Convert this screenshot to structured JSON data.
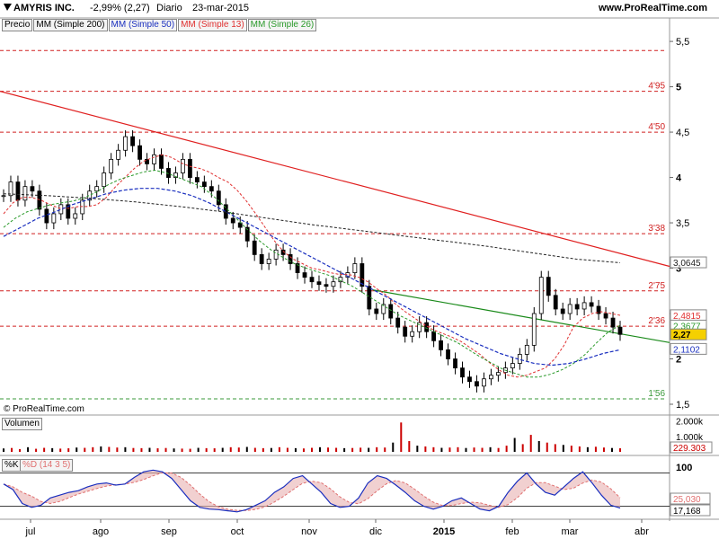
{
  "header": {
    "ticker": "AMYRIS INC.",
    "change": "-2,99% (2,27)",
    "period": "Diario",
    "date": "23-mar-2015",
    "site": "www.ProRealTime.com",
    "copyright": "© ProRealTime.com"
  },
  "legend": {
    "price": "Precio",
    "mm200": "MM (Simple 200)",
    "mm50": "MM (Simple 50)",
    "mm13": "MM (Simple 13)",
    "mm26": "MM (Simple 26)"
  },
  "colors": {
    "mm200": "#222222",
    "mm50": "#1a2fbf",
    "mm13": "#e03030",
    "mm26": "#2a9a2a",
    "resistance": "#e02020",
    "trendline": "#1a8a1a",
    "candle": "#000000",
    "volume_up": "#cc0000",
    "volume_down": "#000000",
    "stoch_k": "#1a2fbf",
    "stoch_d": "#e07070",
    "current_tag": "#f5d000"
  },
  "volume_panel": {
    "label": "Volumen",
    "tick_top": "2.000k",
    "tick_mid": "1.000k",
    "last_value": "229.303"
  },
  "stoch_panel": {
    "label_k": "%K",
    "label_d": "%D (14 3 5)",
    "tick_top": "100",
    "value_d": "25,030",
    "value_k": "17,168"
  },
  "chart_data": {
    "type": "candlestick",
    "price_ylim": [
      1.5,
      5.6
    ],
    "price_ticks": [
      "1,5",
      "2",
      "2,5",
      "3",
      "3,5",
      "4",
      "4,5",
      "5",
      "5,5"
    ],
    "xaxis_labels": [
      "jul",
      "ago",
      "sep",
      "oct",
      "nov",
      "dic",
      "2015",
      "feb",
      "mar",
      "abr"
    ],
    "levels": [
      {
        "value": 5.4,
        "label": ""
      },
      {
        "value": 4.95,
        "label": "4'95"
      },
      {
        "value": 4.5,
        "label": "4'50"
      },
      {
        "value": 3.38,
        "label": "3'38"
      },
      {
        "value": 2.75,
        "label": "2'75"
      },
      {
        "value": 2.36,
        "label": "2'36"
      },
      {
        "value": 1.56,
        "label": "1'56"
      }
    ],
    "price_tags": [
      {
        "label": "3,0645",
        "value": 3.0645,
        "series": "mm200"
      },
      {
        "label": "2,4815",
        "value": 2.4815,
        "series": "mm13"
      },
      {
        "label": "2,3677",
        "value": 2.3677,
        "series": "mm26"
      },
      {
        "label": "2,27",
        "value": 2.27,
        "series": "price"
      },
      {
        "label": "2,1102",
        "value": 2.1102,
        "series": "mm50"
      }
    ],
    "price_path": [
      3.8,
      3.95,
      3.75,
      3.9,
      3.85,
      3.65,
      3.5,
      3.6,
      3.7,
      3.55,
      3.6,
      3.75,
      3.85,
      3.9,
      4.05,
      4.2,
      4.3,
      4.45,
      4.35,
      4.2,
      4.15,
      4.25,
      4.1,
      4.0,
      4.05,
      4.2,
      4.0,
      3.95,
      3.9,
      3.85,
      3.7,
      3.55,
      3.5,
      3.45,
      3.3,
      3.15,
      3.05,
      3.1,
      3.2,
      3.15,
      3.05,
      2.95,
      2.9,
      2.85,
      2.82,
      2.8,
      2.85,
      2.9,
      2.95,
      3.05,
      2.8,
      2.55,
      2.5,
      2.6,
      2.45,
      2.35,
      2.25,
      2.3,
      2.4,
      2.3,
      2.2,
      2.1,
      2.0,
      1.9,
      1.8,
      1.75,
      1.7,
      1.78,
      1.82,
      1.85,
      1.9,
      1.95,
      2.05,
      2.15,
      2.5,
      2.9,
      2.7,
      2.55,
      2.5,
      2.6,
      2.55,
      2.62,
      2.58,
      2.5,
      2.45,
      2.35,
      2.27
    ],
    "mm13_path": [
      3.6,
      3.72,
      3.78,
      3.78,
      3.75,
      3.7,
      3.66,
      3.66,
      3.68,
      3.68,
      3.7,
      3.78,
      3.9,
      4.0,
      4.1,
      4.18,
      4.22,
      4.25,
      4.22,
      4.16,
      4.12,
      4.1,
      4.06,
      4.0,
      3.95,
      3.86,
      3.74,
      3.6,
      3.45,
      3.3,
      3.18,
      3.1,
      3.05,
      3.0,
      2.98,
      2.95,
      2.93,
      2.93,
      2.9,
      2.85,
      2.77,
      2.7,
      2.6,
      2.52,
      2.45,
      2.38,
      2.32,
      2.28,
      2.24,
      2.19,
      2.12,
      2.05,
      1.96,
      1.88,
      1.82,
      1.8,
      1.82,
      1.86,
      1.9,
      2.0,
      2.15,
      2.35,
      2.45,
      2.5,
      2.52,
      2.5,
      2.48
    ],
    "mm26_path": [
      3.45,
      3.55,
      3.62,
      3.66,
      3.7,
      3.72,
      3.74,
      3.78,
      3.84,
      3.92,
      3.98,
      4.02,
      4.06,
      4.08,
      4.05,
      4.0,
      3.95,
      3.9,
      3.8,
      3.68,
      3.55,
      3.42,
      3.3,
      3.2,
      3.12,
      3.05,
      3.0,
      2.96,
      2.92,
      2.86,
      2.8,
      2.72,
      2.64,
      2.56,
      2.48,
      2.42,
      2.36,
      2.3,
      2.24,
      2.18,
      2.1,
      2.02,
      1.95,
      1.88,
      1.84,
      1.8,
      1.8,
      1.83,
      1.88,
      1.95,
      2.05,
      2.18,
      2.3,
      2.37
    ],
    "mm50_path": [
      3.35,
      3.45,
      3.55,
      3.62,
      3.7,
      3.76,
      3.82,
      3.86,
      3.88,
      3.88,
      3.85,
      3.8,
      3.72,
      3.62,
      3.52,
      3.42,
      3.32,
      3.22,
      3.12,
      3.02,
      2.92,
      2.82,
      2.72,
      2.62,
      2.52,
      2.42,
      2.32,
      2.22,
      2.14,
      2.06,
      2.0,
      1.95,
      1.93,
      1.95,
      2.0,
      2.06,
      2.1
    ],
    "mm200_path": [
      3.82,
      3.8,
      3.77,
      3.73,
      3.68,
      3.62,
      3.55,
      3.48,
      3.42,
      3.36,
      3.3,
      3.24,
      3.17,
      3.1,
      3.06
    ],
    "volume_path": [
      220,
      250,
      180,
      300,
      200,
      260,
      240,
      210,
      230,
      280,
      260,
      300,
      350,
      320,
      280,
      300,
      250,
      240,
      260,
      230,
      250,
      220,
      210,
      200,
      260,
      240,
      230,
      260,
      300,
      280,
      320,
      260,
      240,
      250,
      300,
      260,
      240,
      220,
      260,
      300,
      280,
      260,
      240,
      250,
      270,
      260,
      300,
      280,
      600,
      1900,
      700,
      400,
      350,
      300,
      260,
      280,
      300,
      250,
      280,
      260,
      300,
      250,
      400,
      900,
      500,
      1100,
      700,
      600,
      500,
      450,
      400,
      350,
      300,
      330,
      280,
      250,
      230
    ],
    "stoch_k_path": [
      60,
      50,
      25,
      18,
      22,
      35,
      40,
      45,
      48,
      55,
      60,
      62,
      58,
      60,
      72,
      82,
      85,
      82,
      70,
      50,
      30,
      18,
      15,
      14,
      12,
      10,
      14,
      22,
      30,
      45,
      55,
      70,
      75,
      60,
      45,
      25,
      18,
      20,
      35,
      62,
      75,
      70,
      58,
      45,
      30,
      20,
      15,
      20,
      30,
      35,
      25,
      15,
      12,
      20,
      45,
      65,
      80,
      60,
      45,
      40,
      55,
      70,
      82,
      62,
      40,
      22,
      17
    ]
  }
}
